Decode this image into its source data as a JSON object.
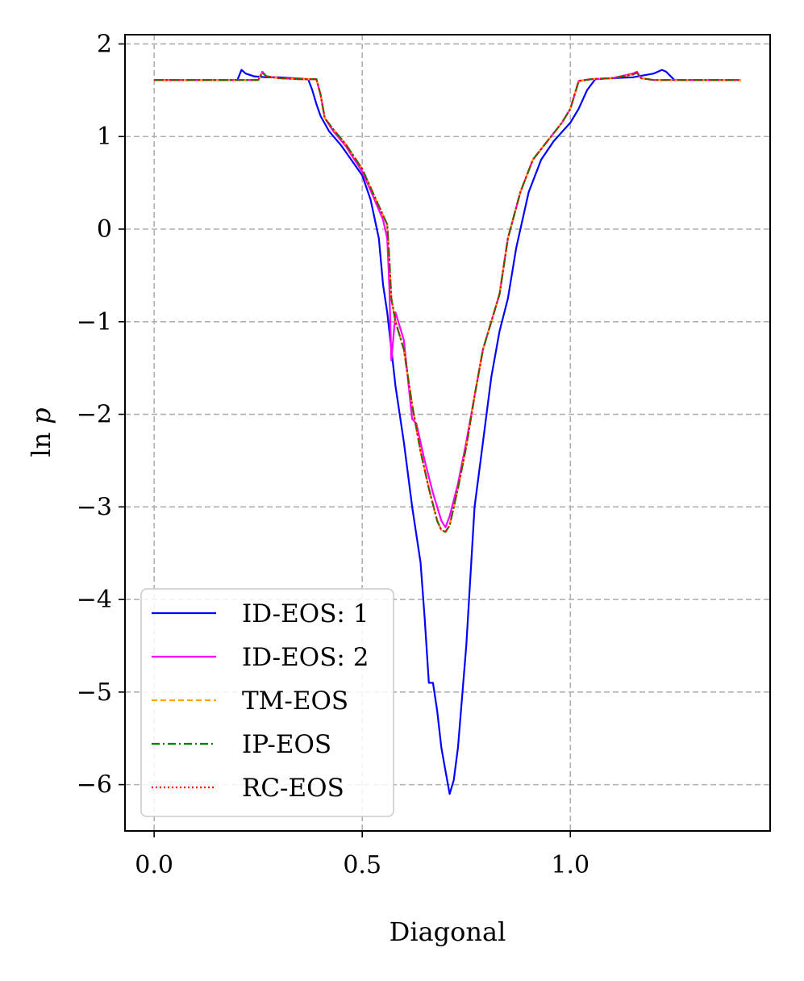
{
  "chart_data": {
    "type": "line",
    "title": "",
    "xlabel": "Diagonal",
    "ylabel_prefix": "ln",
    "ylabel_var": "p",
    "xlim": [
      -0.07,
      1.48
    ],
    "ylim": [
      -6.5,
      2.1
    ],
    "xticks": [
      0.0,
      0.5,
      1.0
    ],
    "xtick_labels": [
      "0.0",
      "0.5",
      "1.0"
    ],
    "yticks": [
      2,
      1,
      0,
      -1,
      -2,
      -3,
      -4,
      -5,
      -6
    ],
    "ytick_labels": [
      "2",
      "1",
      "0",
      "−1",
      "−2",
      "−3",
      "−4",
      "−5",
      "−6"
    ],
    "grid": true,
    "legend_position": "lower-left",
    "series": [
      {
        "name": "ID-EOS: 1",
        "color": "#0000ff",
        "style": "solid",
        "x": [
          0.0,
          0.2,
          0.21,
          0.22,
          0.24,
          0.27,
          0.3,
          0.33,
          0.37,
          0.38,
          0.39,
          0.4,
          0.42,
          0.45,
          0.5,
          0.52,
          0.54,
          0.55,
          0.56,
          0.58,
          0.6,
          0.62,
          0.64,
          0.65,
          0.66,
          0.67,
          0.68,
          0.69,
          0.7,
          0.71,
          0.72,
          0.73,
          0.75,
          0.77,
          0.79,
          0.81,
          0.83,
          0.85,
          0.87,
          0.9,
          0.93,
          0.96,
          1.0,
          1.02,
          1.04,
          1.06,
          1.1,
          1.15,
          1.2,
          1.22,
          1.23,
          1.25,
          1.41
        ],
        "y": [
          1.61,
          1.61,
          1.72,
          1.68,
          1.65,
          1.64,
          1.64,
          1.63,
          1.62,
          1.5,
          1.35,
          1.22,
          1.06,
          0.9,
          0.58,
          0.32,
          -0.1,
          -0.6,
          -0.9,
          -1.7,
          -2.3,
          -3.0,
          -3.6,
          -4.2,
          -4.9,
          -4.9,
          -5.2,
          -5.6,
          -5.85,
          -6.1,
          -5.95,
          -5.6,
          -4.5,
          -3.0,
          -2.3,
          -1.6,
          -1.1,
          -0.75,
          -0.2,
          0.4,
          0.75,
          0.95,
          1.15,
          1.3,
          1.5,
          1.62,
          1.63,
          1.64,
          1.68,
          1.72,
          1.7,
          1.61,
          1.61
        ]
      },
      {
        "name": "ID-EOS: 2",
        "color": "#ff00ff",
        "style": "solid",
        "x": [
          0.0,
          0.25,
          0.26,
          0.27,
          0.3,
          0.35,
          0.39,
          0.4,
          0.41,
          0.43,
          0.46,
          0.5,
          0.52,
          0.55,
          0.56,
          0.565,
          0.57,
          0.58,
          0.6,
          0.62,
          0.63,
          0.65,
          0.67,
          0.69,
          0.7,
          0.71,
          0.73,
          0.75,
          0.77,
          0.79,
          0.81,
          0.83,
          0.85,
          0.88,
          0.91,
          0.95,
          0.98,
          1.0,
          1.02,
          1.05,
          1.1,
          1.15,
          1.16,
          1.17,
          1.2,
          1.41
        ],
        "y": [
          1.61,
          1.61,
          1.7,
          1.65,
          1.63,
          1.62,
          1.62,
          1.45,
          1.2,
          1.06,
          0.9,
          0.62,
          0.42,
          0.1,
          -0.1,
          -0.6,
          -1.42,
          -0.9,
          -1.2,
          -2.05,
          -2.1,
          -2.5,
          -2.85,
          -3.15,
          -3.22,
          -3.1,
          -2.75,
          -2.3,
          -1.8,
          -1.3,
          -1.0,
          -0.7,
          -0.1,
          0.4,
          0.75,
          0.98,
          1.15,
          1.3,
          1.6,
          1.62,
          1.63,
          1.68,
          1.7,
          1.63,
          1.61,
          1.61
        ]
      },
      {
        "name": "TM-EOS",
        "color": "#ffa500",
        "style": "dashed",
        "x": [
          0.0,
          0.25,
          0.26,
          0.27,
          0.3,
          0.35,
          0.39,
          0.4,
          0.41,
          0.43,
          0.46,
          0.5,
          0.52,
          0.55,
          0.56,
          0.565,
          0.57,
          0.58,
          0.6,
          0.62,
          0.64,
          0.66,
          0.68,
          0.69,
          0.7,
          0.71,
          0.73,
          0.75,
          0.77,
          0.79,
          0.81,
          0.83,
          0.85,
          0.88,
          0.91,
          0.95,
          0.98,
          1.0,
          1.02,
          1.05,
          1.1,
          1.15,
          1.16,
          1.17,
          1.2,
          1.41
        ],
        "y": [
          1.61,
          1.61,
          1.69,
          1.65,
          1.63,
          1.62,
          1.62,
          1.45,
          1.2,
          1.08,
          0.92,
          0.65,
          0.45,
          0.15,
          0.05,
          -0.3,
          -0.75,
          -1.0,
          -1.3,
          -1.9,
          -2.4,
          -2.8,
          -3.15,
          -3.25,
          -3.27,
          -3.2,
          -2.8,
          -2.35,
          -1.8,
          -1.3,
          -1.0,
          -0.7,
          -0.1,
          0.4,
          0.75,
          0.98,
          1.15,
          1.3,
          1.6,
          1.62,
          1.63,
          1.67,
          1.69,
          1.63,
          1.61,
          1.61
        ]
      },
      {
        "name": "IP-EOS",
        "color": "#008000",
        "style": "dashdot",
        "x": [
          0.0,
          0.25,
          0.26,
          0.27,
          0.3,
          0.35,
          0.39,
          0.4,
          0.41,
          0.43,
          0.46,
          0.5,
          0.52,
          0.55,
          0.56,
          0.565,
          0.57,
          0.58,
          0.6,
          0.62,
          0.64,
          0.66,
          0.68,
          0.69,
          0.7,
          0.71,
          0.73,
          0.75,
          0.77,
          0.79,
          0.81,
          0.83,
          0.85,
          0.88,
          0.91,
          0.95,
          0.98,
          1.0,
          1.02,
          1.05,
          1.1,
          1.15,
          1.16,
          1.17,
          1.2,
          1.41
        ],
        "y": [
          1.61,
          1.61,
          1.69,
          1.65,
          1.63,
          1.62,
          1.62,
          1.45,
          1.2,
          1.08,
          0.92,
          0.65,
          0.45,
          0.15,
          0.05,
          -0.3,
          -0.75,
          -1.0,
          -1.3,
          -1.9,
          -2.4,
          -2.8,
          -3.15,
          -3.25,
          -3.27,
          -3.2,
          -2.8,
          -2.35,
          -1.8,
          -1.3,
          -1.0,
          -0.7,
          -0.1,
          0.4,
          0.75,
          0.98,
          1.15,
          1.3,
          1.6,
          1.62,
          1.63,
          1.67,
          1.69,
          1.63,
          1.61,
          1.61
        ]
      },
      {
        "name": "RC-EOS",
        "color": "#ff0000",
        "style": "dotted",
        "x": [
          0.0,
          0.25,
          0.26,
          0.27,
          0.3,
          0.35,
          0.39,
          0.4,
          0.41,
          0.43,
          0.46,
          0.5,
          0.52,
          0.55,
          0.56,
          0.565,
          0.57,
          0.58,
          0.6,
          0.62,
          0.64,
          0.66,
          0.68,
          0.69,
          0.7,
          0.71,
          0.73,
          0.75,
          0.77,
          0.79,
          0.81,
          0.83,
          0.85,
          0.88,
          0.91,
          0.95,
          0.98,
          1.0,
          1.02,
          1.05,
          1.1,
          1.15,
          1.16,
          1.17,
          1.2,
          1.41
        ],
        "y": [
          1.61,
          1.61,
          1.69,
          1.65,
          1.63,
          1.62,
          1.62,
          1.45,
          1.2,
          1.08,
          0.92,
          0.65,
          0.45,
          0.15,
          0.05,
          -0.3,
          -0.75,
          -1.0,
          -1.3,
          -1.9,
          -2.4,
          -2.8,
          -3.15,
          -3.25,
          -3.27,
          -3.2,
          -2.8,
          -2.35,
          -1.8,
          -1.3,
          -1.0,
          -0.7,
          -0.1,
          0.4,
          0.75,
          0.98,
          1.15,
          1.3,
          1.6,
          1.62,
          1.63,
          1.67,
          1.69,
          1.63,
          1.61,
          1.61
        ]
      }
    ]
  }
}
